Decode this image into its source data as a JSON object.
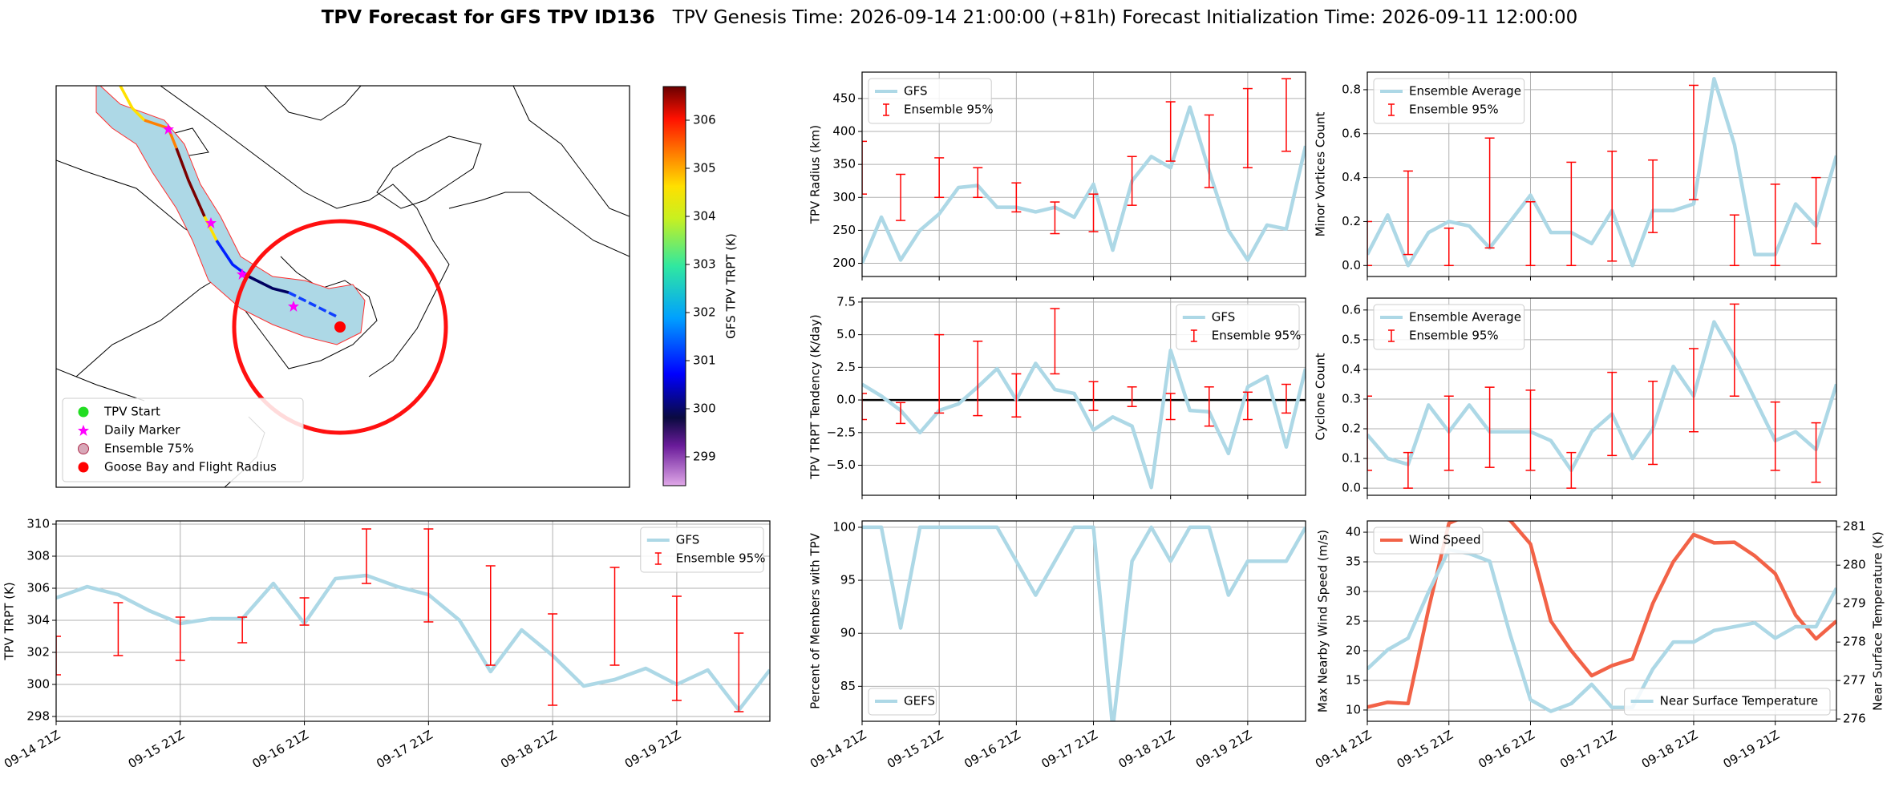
{
  "chart_data": [
    {
      "type": "map",
      "title": "TPV Forecast for GFS TPV ID136",
      "subtitle": "TPV Genesis Time: 2026-09-14 21:00:00 (+81h)   Forecast Initialization Time: 2026-09-11 12:00:00",
      "colorbar_label": "GFS TPV TRPT (K)",
      "clim": [
        298.4,
        306.7
      ],
      "cticks": [
        299,
        300,
        301,
        302,
        303,
        304,
        305,
        306
      ],
      "legend": [
        {
          "name": "TPV Start",
          "color": "#22dd22",
          "marker": "circle"
        },
        {
          "name": "Daily Marker",
          "color": "#ff00ff",
          "marker": "star"
        },
        {
          "name": "Ensemble 75%",
          "color": "#d8a8b8",
          "marker": "circle"
        },
        {
          "name": "Goose Bay and Flight Radius",
          "color": "#ff0000",
          "marker": "circle"
        }
      ]
    },
    {
      "type": "line",
      "ylabel": "TPV TRPT (K)",
      "legend": "upper right",
      "grid": true,
      "x": [
        "09-14 21Z",
        "09-15 03Z",
        "09-15 09Z",
        "09-15 15Z",
        "09-15 21Z",
        "09-16 03Z",
        "09-16 09Z",
        "09-16 15Z",
        "09-16 21Z",
        "09-17 03Z",
        "09-17 09Z",
        "09-17 15Z",
        "09-17 21Z",
        "09-18 03Z",
        "09-18 09Z",
        "09-18 15Z",
        "09-18 21Z",
        "09-19 03Z",
        "09-19 09Z",
        "09-19 15Z",
        "09-19 21Z",
        "09-20 03Z",
        "09-20 09Z",
        "09-20 15Z"
      ],
      "xlim": [
        "09-14 21Z",
        "09-20 15Z"
      ],
      "xticks": [
        "09-14 21Z",
        "09-15 21Z",
        "09-16 21Z",
        "09-17 21Z",
        "09-18 21Z",
        "09-19 21Z"
      ],
      "ylim": [
        297.7,
        310.2
      ],
      "yticks": [
        298,
        300,
        302,
        304,
        306,
        308,
        310
      ],
      "series": [
        {
          "name": "GFS",
          "color": "#add8e6",
          "values": [
            305.4,
            306.1,
            305.6,
            304.6,
            303.8,
            304.1,
            304.1,
            306.3,
            303.8,
            306.6,
            306.8,
            306.1,
            305.6,
            304.0,
            300.8,
            303.4,
            301.8,
            299.9,
            300.3,
            301.0,
            300.0,
            300.9,
            298.4,
            300.9
          ]
        }
      ],
      "error_bars": {
        "name": "Ensemble 95%",
        "color": "#ff0000",
        "x": [
          "09-14 21Z",
          "09-15 09Z",
          "09-15 21Z",
          "09-16 09Z",
          "09-16 21Z",
          "09-17 09Z",
          "09-17 21Z",
          "09-18 09Z",
          "09-18 21Z",
          "09-19 09Z",
          "09-19 21Z",
          "09-20 09Z"
        ],
        "low": [
          300.6,
          301.8,
          301.5,
          302.6,
          303.7,
          306.3,
          303.9,
          301.2,
          298.7,
          301.2,
          299.0,
          298.3
        ],
        "high": [
          303.0,
          305.1,
          304.2,
          304.2,
          305.4,
          309.7,
          309.7,
          307.4,
          304.4,
          307.3,
          305.5,
          303.2
        ]
      }
    },
    {
      "type": "line",
      "ylabel": "TPV Radius (km)",
      "legend": "upper left",
      "grid": true,
      "x": [
        "09-14 21Z",
        "09-15 03Z",
        "09-15 09Z",
        "09-15 15Z",
        "09-15 21Z",
        "09-16 03Z",
        "09-16 09Z",
        "09-16 15Z",
        "09-16 21Z",
        "09-17 03Z",
        "09-17 09Z",
        "09-17 15Z",
        "09-17 21Z",
        "09-18 03Z",
        "09-18 09Z",
        "09-18 15Z",
        "09-18 21Z",
        "09-19 03Z",
        "09-19 09Z",
        "09-19 15Z",
        "09-19 21Z",
        "09-20 03Z",
        "09-20 09Z",
        "09-20 15Z"
      ],
      "xlim": [
        "09-14 21Z",
        "09-20 15Z"
      ],
      "xticks": [],
      "ylim": [
        180,
        490
      ],
      "yticks": [
        200,
        250,
        300,
        350,
        400,
        450
      ],
      "series": [
        {
          "name": "GFS",
          "color": "#add8e6",
          "values": [
            200,
            270,
            205,
            250,
            275,
            315,
            318,
            285,
            285,
            278,
            285,
            270,
            320,
            220,
            325,
            362,
            345,
            437,
            340,
            250,
            205,
            258,
            252,
            378
          ]
        }
      ],
      "error_bars": {
        "name": "Ensemble 95%",
        "color": "#ff0000",
        "x": [
          "09-14 21Z",
          "09-15 09Z",
          "09-15 21Z",
          "09-16 09Z",
          "09-16 21Z",
          "09-17 09Z",
          "09-17 21Z",
          "09-18 09Z",
          "09-18 21Z",
          "09-19 09Z",
          "09-19 21Z",
          "09-20 09Z"
        ],
        "low": [
          305,
          265,
          300,
          300,
          278,
          245,
          248,
          288,
          355,
          315,
          345,
          370
        ],
        "high": [
          385,
          335,
          360,
          345,
          322,
          293,
          305,
          362,
          445,
          425,
          465,
          480
        ]
      }
    },
    {
      "type": "line",
      "ylabel": "TPV TRPT Tendency (K/day)",
      "legend": "upper right",
      "grid": true,
      "reference_line": 0,
      "x": [
        "09-14 21Z",
        "09-15 03Z",
        "09-15 09Z",
        "09-15 15Z",
        "09-15 21Z",
        "09-16 03Z",
        "09-16 09Z",
        "09-16 15Z",
        "09-16 21Z",
        "09-17 03Z",
        "09-17 09Z",
        "09-17 15Z",
        "09-17 21Z",
        "09-18 03Z",
        "09-18 09Z",
        "09-18 15Z",
        "09-18 21Z",
        "09-19 03Z",
        "09-19 09Z",
        "09-19 15Z",
        "09-19 21Z",
        "09-20 03Z",
        "09-20 09Z",
        "09-20 15Z"
      ],
      "xlim": [
        "09-14 21Z",
        "09-20 15Z"
      ],
      "xticks": [],
      "ylim": [
        -7.3,
        7.8
      ],
      "yticks": [
        -5.0,
        -2.5,
        0.0,
        2.5,
        5.0,
        7.5
      ],
      "ytick_labels": [
        "−5.0",
        "−2.5",
        "0.0",
        "2.5",
        "5.0",
        "7.5"
      ],
      "series": [
        {
          "name": "GFS",
          "color": "#add8e6",
          "values": [
            1.2,
            0.3,
            -0.8,
            -2.5,
            -0.8,
            -0.3,
            1.0,
            2.4,
            0,
            2.8,
            0.8,
            0.5,
            -2.3,
            -1.3,
            -2.0,
            -6.7,
            3.8,
            -0.8,
            -0.9,
            -4.1,
            1.0,
            1.8,
            -3.6,
            2.4
          ]
        }
      ],
      "error_bars": {
        "name": "Ensemble 95%",
        "color": "#ff0000",
        "x": [
          "09-14 21Z",
          "09-15 09Z",
          "09-15 21Z",
          "09-16 09Z",
          "09-16 21Z",
          "09-17 09Z",
          "09-17 21Z",
          "09-18 09Z",
          "09-18 21Z",
          "09-19 09Z",
          "09-19 21Z",
          "09-20 09Z"
        ],
        "low": [
          -1.5,
          -1.8,
          -1.0,
          -1.2,
          -1.3,
          2.0,
          -0.8,
          -0.5,
          -1.5,
          -2.0,
          -1.5,
          -1.0
        ],
        "high": [
          0.5,
          -0.2,
          5.0,
          4.5,
          2.0,
          7.0,
          1.4,
          1.0,
          0.5,
          1.0,
          0.6,
          1.2
        ]
      }
    },
    {
      "type": "line",
      "ylabel": "Percent of Members with TPV",
      "legend": "lower left",
      "grid": true,
      "x": [
        "09-14 21Z",
        "09-15 03Z",
        "09-15 09Z",
        "09-15 15Z",
        "09-15 21Z",
        "09-16 03Z",
        "09-16 09Z",
        "09-16 15Z",
        "09-16 21Z",
        "09-17 03Z",
        "09-17 09Z",
        "09-17 15Z",
        "09-17 21Z",
        "09-18 03Z",
        "09-18 09Z",
        "09-18 15Z",
        "09-18 21Z",
        "09-19 03Z",
        "09-19 09Z",
        "09-19 15Z",
        "09-19 21Z",
        "09-20 03Z",
        "09-20 09Z",
        "09-20 15Z"
      ],
      "xlim": [
        "09-14 21Z",
        "09-20 15Z"
      ],
      "xticks": [
        "09-14 21Z",
        "09-15 21Z",
        "09-16 21Z",
        "09-17 21Z",
        "09-18 21Z",
        "09-19 21Z"
      ],
      "ylim": [
        81.7,
        100.6
      ],
      "yticks": [
        85,
        90,
        95,
        100
      ],
      "series": [
        {
          "name": "GEFS",
          "color": "#add8e6",
          "values": [
            100,
            100,
            90.5,
            100,
            100,
            100,
            100,
            100,
            96.8,
            93.6,
            96.8,
            100,
            100,
            81,
            96.8,
            100,
            96.8,
            100,
            100,
            93.6,
            96.8,
            96.8,
            96.8,
            100
          ]
        }
      ]
    },
    {
      "type": "line",
      "ylabel": "Minor Vortices Count",
      "legend": "upper left",
      "grid": true,
      "x": [
        "09-14 21Z",
        "09-15 03Z",
        "09-15 09Z",
        "09-15 15Z",
        "09-15 21Z",
        "09-16 03Z",
        "09-16 09Z",
        "09-16 15Z",
        "09-16 21Z",
        "09-17 03Z",
        "09-17 09Z",
        "09-17 15Z",
        "09-17 21Z",
        "09-18 03Z",
        "09-18 09Z",
        "09-18 15Z",
        "09-18 21Z",
        "09-19 03Z",
        "09-19 09Z",
        "09-19 15Z",
        "09-19 21Z",
        "09-20 03Z",
        "09-20 09Z",
        "09-20 15Z"
      ],
      "xlim": [
        "09-14 21Z",
        "09-20 15Z"
      ],
      "xticks": [],
      "ylim": [
        -0.05,
        0.88
      ],
      "yticks": [
        {
          "value": 0,
          "label": "0.0"
        },
        0.2,
        0.4,
        0.6,
        0.8
      ],
      "series": [
        {
          "name": "Ensemble Average",
          "color": "#add8e6",
          "values": [
            0.05,
            0.23,
            0,
            0.15,
            0.2,
            0.18,
            0.08,
            0.2,
            0.32,
            0.15,
            0.15,
            0.1,
            0.25,
            0,
            0.25,
            0.25,
            0.28,
            0.85,
            0.55,
            0.05,
            0.05,
            0.28,
            0.18,
            0.5
          ]
        }
      ],
      "error_bars": {
        "name": "Ensemble 95%",
        "color": "#ff0000",
        "x": [
          "09-14 21Z",
          "09-15 09Z",
          "09-15 21Z",
          "09-16 09Z",
          "09-16 21Z",
          "09-17 09Z",
          "09-17 21Z",
          "09-18 09Z",
          "09-18 21Z",
          "09-19 09Z",
          "09-19 21Z",
          "09-20 09Z"
        ],
        "low": [
          0,
          0.05,
          0,
          0.08,
          0,
          0,
          0.02,
          0.15,
          0.3,
          0,
          0,
          0.1
        ],
        "high": [
          0.2,
          0.43,
          0.17,
          0.58,
          0.29,
          0.47,
          0.52,
          0.48,
          0.82,
          0.23,
          0.37,
          0.4
        ]
      }
    },
    {
      "type": "line",
      "ylabel": "Cyclone Count",
      "legend": "upper left",
      "grid": true,
      "x": [
        "09-14 21Z",
        "09-15 03Z",
        "09-15 09Z",
        "09-15 15Z",
        "09-15 21Z",
        "09-16 03Z",
        "09-16 09Z",
        "09-16 15Z",
        "09-16 21Z",
        "09-17 03Z",
        "09-17 09Z",
        "09-17 15Z",
        "09-17 21Z",
        "09-18 03Z",
        "09-18 09Z",
        "09-18 15Z",
        "09-18 21Z",
        "09-19 03Z",
        "09-19 09Z",
        "09-19 15Z",
        "09-19 21Z",
        "09-20 03Z",
        "09-20 09Z",
        "09-20 15Z"
      ],
      "xlim": [
        "09-14 21Z",
        "09-20 15Z"
      ],
      "xticks": [],
      "ylim": [
        -0.024,
        0.64
      ],
      "yticks": [
        {
          "value": 0,
          "label": "0.0"
        },
        0.1,
        0.2,
        0.3,
        0.4,
        0.5,
        0.6
      ],
      "series": [
        {
          "name": "Ensemble Average",
          "color": "#add8e6",
          "values": [
            0.18,
            0.1,
            0.08,
            0.28,
            0.19,
            0.28,
            0.19,
            0.19,
            0.19,
            0.16,
            0.06,
            0.19,
            0.25,
            0.1,
            0.2,
            0.41,
            0.31,
            0.56,
            0.44,
            0.3,
            0.16,
            0.19,
            0.13,
            0.35
          ]
        }
      ],
      "error_bars": {
        "name": "Ensemble 95%",
        "color": "#ff0000",
        "x": [
          "09-14 21Z",
          "09-15 09Z",
          "09-15 21Z",
          "09-16 09Z",
          "09-16 21Z",
          "09-17 09Z",
          "09-17 21Z",
          "09-18 09Z",
          "09-18 21Z",
          "09-19 09Z",
          "09-19 21Z",
          "09-20 09Z"
        ],
        "low": [
          0.06,
          0,
          0.06,
          0.07,
          0.06,
          0,
          0.11,
          0.08,
          0.19,
          0.31,
          0.06,
          0.02
        ],
        "high": [
          0.31,
          0.12,
          0.31,
          0.34,
          0.33,
          0.12,
          0.39,
          0.36,
          0.47,
          0.62,
          0.29,
          0.22
        ]
      }
    },
    {
      "type": "line",
      "ylabel": "Max Nearby Wind Speed (m/s)",
      "y2label": "Near Surface Temperature (K)",
      "grid": true,
      "ylabel_color": "#f26247",
      "y2label_color": "#4169e1",
      "x": [
        "09-14 21Z",
        "09-15 03Z",
        "09-15 09Z",
        "09-15 15Z",
        "09-15 21Z",
        "09-16 03Z",
        "09-16 09Z",
        "09-16 15Z",
        "09-16 21Z",
        "09-17 03Z",
        "09-17 09Z",
        "09-17 15Z",
        "09-17 21Z",
        "09-18 03Z",
        "09-18 09Z",
        "09-18 15Z",
        "09-18 21Z",
        "09-19 03Z",
        "09-19 09Z",
        "09-19 15Z",
        "09-19 21Z",
        "09-20 03Z",
        "09-20 09Z",
        "09-20 15Z"
      ],
      "xlim": [
        "09-14 21Z",
        "09-20 15Z"
      ],
      "xticks": [
        "09-14 21Z",
        "09-15 21Z",
        "09-16 21Z",
        "09-17 21Z",
        "09-18 21Z",
        "09-19 21Z"
      ],
      "ylim": [
        8.1,
        41.9
      ],
      "yticks": [
        10,
        15,
        20,
        25,
        30,
        35,
        40
      ],
      "y2lim": [
        275.94,
        281.15
      ],
      "y2ticks": [
        276,
        277,
        278,
        279,
        280,
        281
      ],
      "series": [
        {
          "name": "Wind Speed",
          "color": "#f26247",
          "legend": "upper left",
          "values": [
            10.5,
            11.3,
            11.1,
            27,
            41.5,
            43,
            43,
            42,
            38,
            25,
            20,
            15.8,
            17.5,
            18.6,
            28,
            35,
            39.6,
            38.2,
            38.3,
            36,
            33,
            26,
            22,
            25
          ]
        },
        {
          "name": "Near Surface Temperature",
          "color": "#add8e6",
          "axis": "y2",
          "legend": "lower right",
          "values": [
            277.3,
            277.8,
            278.1,
            279.3,
            280.4,
            280.3,
            280.1,
            278.2,
            276.5,
            276.2,
            276.4,
            276.9,
            276.3,
            276.3,
            277.3,
            278.0,
            278.0,
            278.3,
            278.4,
            278.5,
            278.1,
            278.4,
            278.4,
            279.4
          ]
        }
      ]
    }
  ]
}
